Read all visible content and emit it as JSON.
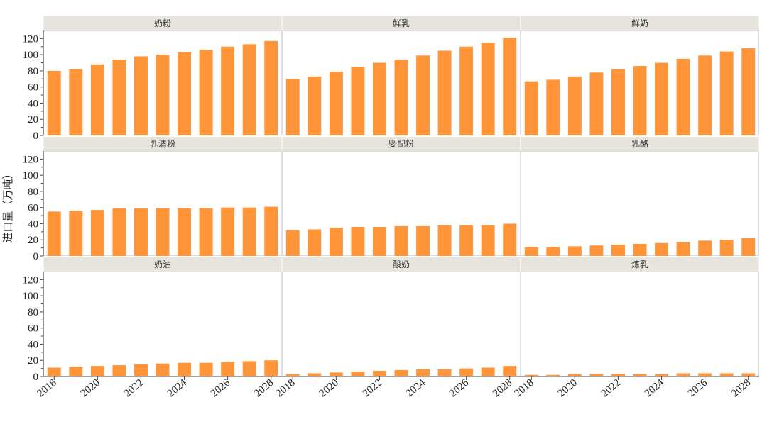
{
  "chart_data": {
    "type": "bar",
    "layout": "facet-grid-3x3",
    "ylabel": "进口量（万吨）",
    "xlabel": "",
    "ylim": [
      0,
      130
    ],
    "yticks": [
      0,
      20,
      40,
      60,
      80,
      100,
      120
    ],
    "xticks": [
      "2018",
      "2020",
      "2022",
      "2024",
      "2026",
      "2028"
    ],
    "x": [
      2018,
      2019,
      2020,
      2021,
      2022,
      2023,
      2024,
      2025,
      2026,
      2027,
      2028
    ],
    "bar_color": "#ff9438",
    "strip_color": "#e6e4dc",
    "facets": [
      {
        "label": "奶粉",
        "values": [
          80,
          82,
          88,
          94,
          98,
          100,
          103,
          106,
          110,
          113,
          117
        ]
      },
      {
        "label": "鲜乳",
        "values": [
          70,
          73,
          79,
          85,
          90,
          94,
          99,
          105,
          110,
          115,
          121
        ]
      },
      {
        "label": "鲜奶",
        "values": [
          67,
          69,
          73,
          78,
          82,
          86,
          90,
          95,
          99,
          104,
          108
        ]
      },
      {
        "label": "乳清粉",
        "values": [
          55,
          56,
          57,
          59,
          59,
          59,
          59,
          59,
          60,
          60,
          61
        ]
      },
      {
        "label": "婴配粉",
        "values": [
          32,
          33,
          35,
          36,
          36,
          37,
          37,
          38,
          38,
          38,
          40
        ]
      },
      {
        "label": "乳酪",
        "values": [
          11,
          11,
          12,
          13,
          14,
          15,
          16,
          17,
          19,
          20,
          22
        ]
      },
      {
        "label": "奶油",
        "values": [
          11,
          12,
          13,
          14,
          15,
          16,
          17,
          17,
          18,
          19,
          20
        ]
      },
      {
        "label": "酸奶",
        "values": [
          3,
          4,
          5,
          6,
          7,
          8,
          9,
          9,
          10,
          11,
          13
        ]
      },
      {
        "label": "炼乳",
        "values": [
          2,
          2,
          3,
          3,
          3,
          3,
          3,
          4,
          4,
          4,
          4
        ]
      }
    ]
  }
}
